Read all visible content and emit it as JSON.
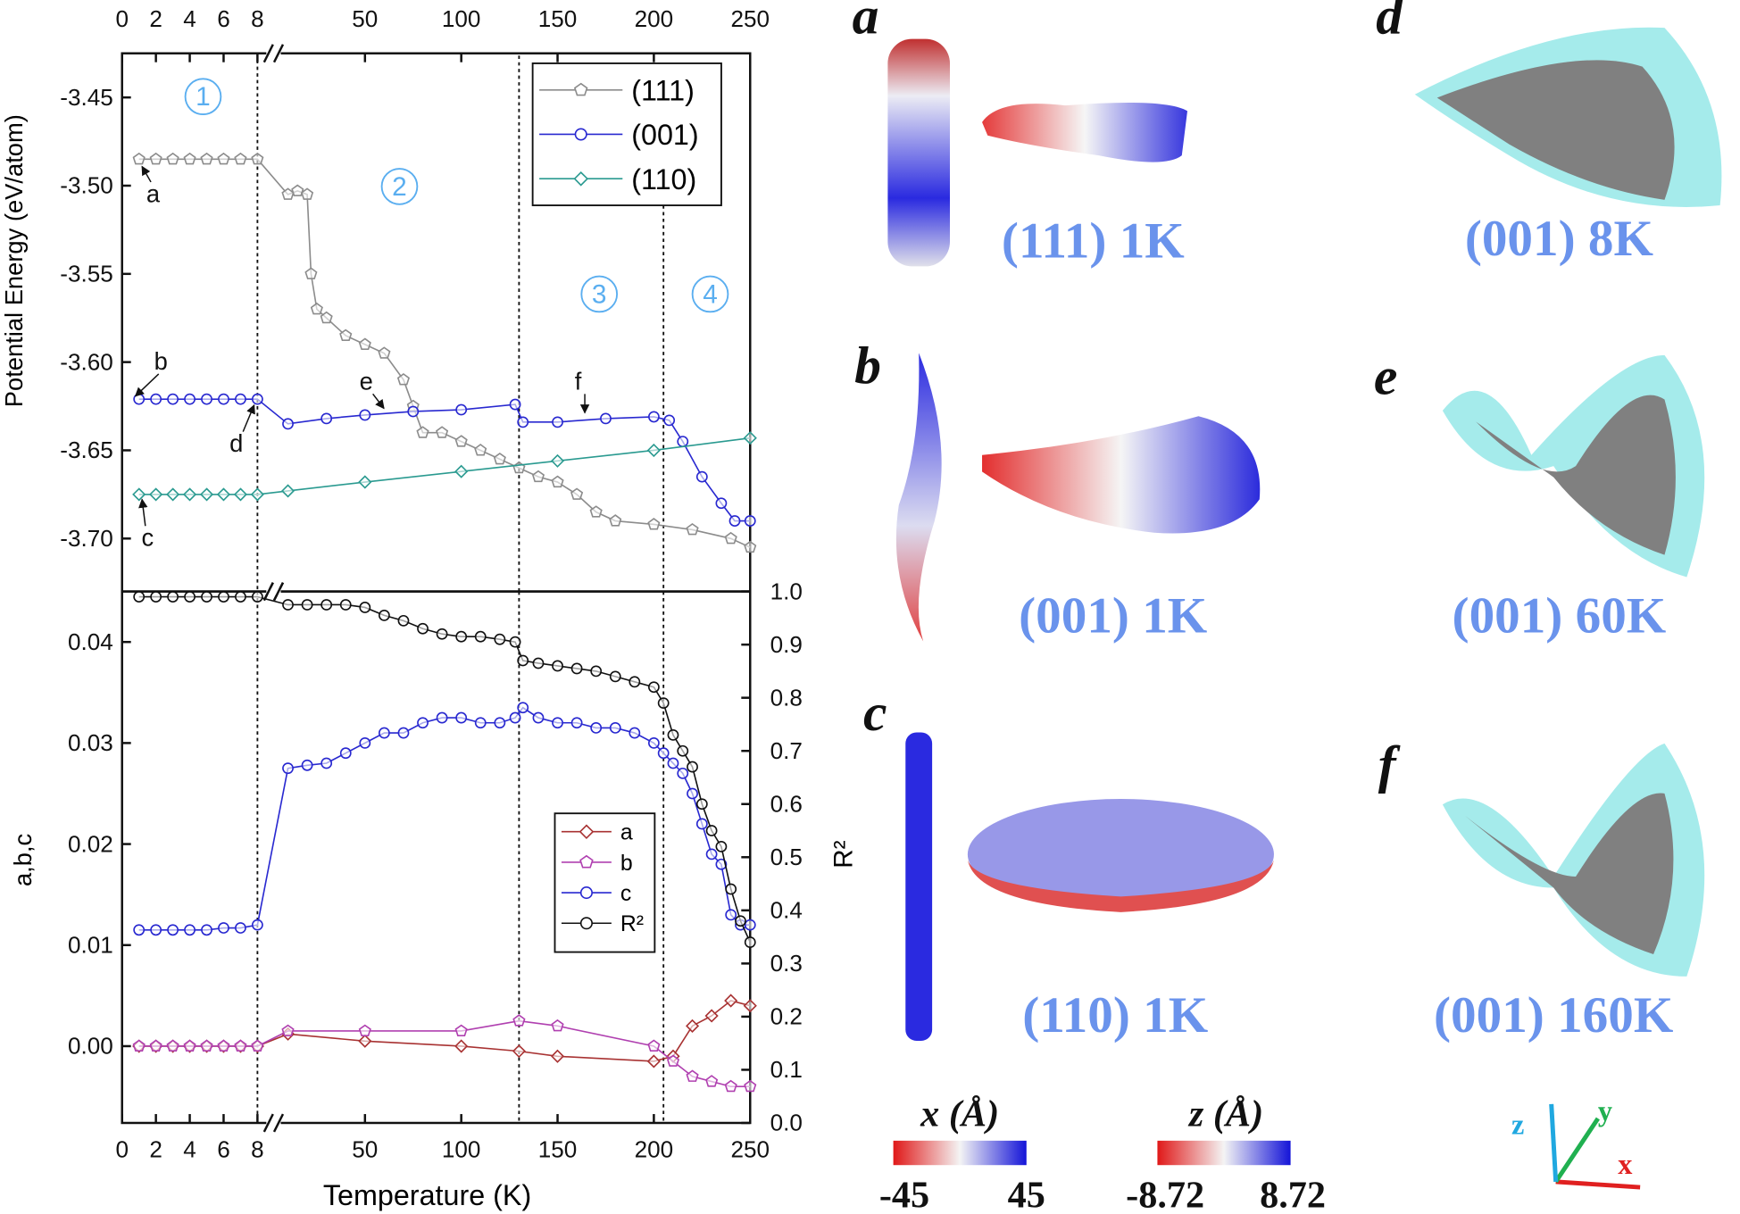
{
  "chart_data": [
    {
      "type": "line",
      "ylabel": "Potential Energy (eV/atom)",
      "x_segments": [
        {
          "xlim": [
            0,
            8
          ],
          "xticks": [
            0,
            2,
            4,
            6,
            8
          ]
        },
        {
          "xlim": [
            8,
            250
          ],
          "xticks": [
            50,
            100,
            150,
            200,
            250
          ]
        }
      ],
      "ylim": [
        -3.73,
        -3.425
      ],
      "yticks": [
        -3.45,
        {
          "value": -3.5,
          "label": "-3.50"
        },
        -3.55,
        {
          "value": -3.6,
          "label": "-3.60"
        },
        -3.65,
        {
          "value": -3.7,
          "label": "-3.70"
        }
      ],
      "vlines": [
        8,
        130,
        205
      ],
      "legend": "upper right",
      "regions": [
        "1",
        "2",
        "3",
        "4"
      ],
      "point_labels": [
        "a",
        "b",
        "c",
        "d",
        "e",
        "f"
      ],
      "series": [
        {
          "name": "(111)",
          "color": "#8c8c8c",
          "marker": "pentagon",
          "x": [
            1,
            2,
            3,
            4,
            5,
            6,
            7,
            8,
            10,
            15,
            20,
            22,
            25,
            30,
            40,
            50,
            60,
            70,
            75,
            80,
            90,
            100,
            110,
            120,
            130,
            140,
            150,
            160,
            170,
            180,
            200,
            220,
            240,
            250
          ],
          "values": [
            -3.485,
            -3.485,
            -3.485,
            -3.485,
            -3.485,
            -3.485,
            -3.485,
            -3.485,
            -3.505,
            -3.503,
            -3.505,
            -3.55,
            -3.57,
            -3.575,
            -3.585,
            -3.59,
            -3.595,
            -3.61,
            -3.625,
            -3.64,
            -3.64,
            -3.645,
            -3.65,
            -3.655,
            -3.66,
            -3.665,
            -3.668,
            -3.675,
            -3.685,
            -3.69,
            -3.692,
            -3.695,
            -3.7,
            -3.705
          ]
        },
        {
          "name": "(001)",
          "color": "#2828d0",
          "marker": "circle",
          "x": [
            1,
            2,
            3,
            4,
            5,
            6,
            7,
            8,
            10,
            30,
            50,
            75,
            100,
            128,
            132,
            150,
            175,
            200,
            208,
            215,
            225,
            235,
            242,
            250
          ],
          "values": [
            -3.621,
            -3.621,
            -3.621,
            -3.621,
            -3.621,
            -3.621,
            -3.621,
            -3.621,
            -3.635,
            -3.632,
            -3.63,
            -3.628,
            -3.627,
            -3.624,
            -3.634,
            -3.634,
            -3.632,
            -3.631,
            -3.633,
            -3.645,
            -3.665,
            -3.68,
            -3.69,
            -3.69
          ]
        },
        {
          "name": "(110)",
          "color": "#2a9a90",
          "marker": "diamond",
          "x": [
            1,
            2,
            3,
            4,
            5,
            6,
            7,
            8,
            10,
            50,
            100,
            150,
            200,
            250
          ],
          "values": [
            -3.675,
            -3.675,
            -3.675,
            -3.675,
            -3.675,
            -3.675,
            -3.675,
            -3.675,
            -3.673,
            -3.668,
            -3.662,
            -3.656,
            -3.65,
            -3.643
          ]
        }
      ]
    },
    {
      "type": "line",
      "xlabel": "Temperature (K)",
      "ylabel": "a,b,c",
      "y2label": "R²",
      "x_segments": [
        {
          "xlim": [
            0,
            8
          ],
          "xticks": [
            0,
            2,
            4,
            6,
            8
          ]
        },
        {
          "xlim": [
            8,
            250
          ],
          "xticks": [
            50,
            100,
            150,
            200,
            250
          ]
        }
      ],
      "ylim": [
        -0.0076,
        0.045
      ],
      "yticks": [
        {
          "value": 0,
          "label": "0.00"
        },
        0.01,
        0.02,
        0.03,
        0.04
      ],
      "y2lim": [
        0,
        1
      ],
      "y2ticks": [
        {
          "value": 0,
          "label": "0.0"
        },
        0.1,
        0.2,
        0.3,
        0.4,
        0.5,
        0.6,
        0.7,
        0.8,
        0.9,
        {
          "value": 1,
          "label": "1.0"
        }
      ],
      "vlines": [
        8,
        130,
        205
      ],
      "legend": "center right",
      "series": [
        {
          "name": "a",
          "color": "#a83232",
          "marker": "diamond",
          "x": [
            1,
            2,
            3,
            4,
            5,
            6,
            7,
            8,
            10,
            50,
            100,
            130,
            150,
            200,
            210,
            220,
            230,
            240,
            250
          ],
          "values": [
            0,
            0,
            0,
            0,
            0,
            0,
            0,
            0,
            0.0012,
            0.0005,
            0,
            -0.0005,
            -0.001,
            -0.0015,
            -0.001,
            0.002,
            0.003,
            0.0045,
            0.004
          ]
        },
        {
          "name": "b",
          "color": "#b040b0",
          "marker": "pentagon",
          "x": [
            1,
            2,
            3,
            4,
            5,
            6,
            7,
            8,
            10,
            50,
            100,
            130,
            150,
            200,
            210,
            220,
            230,
            240,
            250
          ],
          "values": [
            0,
            0,
            0,
            0,
            0,
            0,
            0,
            0,
            0.0015,
            0.0015,
            0.0015,
            0.0025,
            0.002,
            0,
            -0.0015,
            -0.003,
            -0.0035,
            -0.004,
            -0.004
          ]
        },
        {
          "name": "c",
          "color": "#2828d0",
          "marker": "circle",
          "x": [
            1,
            2,
            3,
            4,
            5,
            6,
            7,
            8,
            10,
            20,
            30,
            40,
            50,
            60,
            70,
            80,
            90,
            100,
            110,
            120,
            128,
            132,
            140,
            150,
            160,
            170,
            180,
            190,
            200,
            205,
            210,
            215,
            220,
            225,
            230,
            235,
            240,
            245,
            250
          ],
          "values": [
            0.0115,
            0.0115,
            0.0115,
            0.0115,
            0.0115,
            0.0117,
            0.0117,
            0.012,
            0.0275,
            0.0278,
            0.028,
            0.029,
            0.03,
            0.031,
            0.031,
            0.032,
            0.0325,
            0.0325,
            0.032,
            0.032,
            0.0325,
            0.0335,
            0.0325,
            0.032,
            0.032,
            0.0315,
            0.0315,
            0.031,
            0.03,
            0.029,
            0.028,
            0.027,
            0.025,
            0.022,
            0.019,
            0.018,
            0.013,
            0.012,
            0.012
          ]
        },
        {
          "name": "R²",
          "color": "#111111",
          "marker": "circle",
          "axis": "y2",
          "x": [
            1,
            2,
            3,
            4,
            5,
            6,
            7,
            8,
            10,
            20,
            30,
            40,
            50,
            60,
            70,
            80,
            90,
            100,
            110,
            120,
            128,
            132,
            140,
            150,
            160,
            170,
            180,
            190,
            200,
            205,
            210,
            215,
            220,
            225,
            230,
            235,
            240,
            245,
            250
          ],
          "values": [
            0.99,
            0.99,
            0.99,
            0.99,
            0.99,
            0.99,
            0.99,
            0.99,
            0.975,
            0.975,
            0.975,
            0.975,
            0.97,
            0.955,
            0.945,
            0.93,
            0.92,
            0.915,
            0.915,
            0.91,
            0.905,
            0.87,
            0.865,
            0.86,
            0.855,
            0.85,
            0.84,
            0.83,
            0.82,
            0.79,
            0.73,
            0.7,
            0.67,
            0.6,
            0.55,
            0.52,
            0.44,
            0.38,
            0.34
          ]
        }
      ]
    }
  ],
  "panels": [
    {
      "letter": "a",
      "label": "(111) 1K"
    },
    {
      "letter": "b",
      "label": "(001) 1K"
    },
    {
      "letter": "c",
      "label": "(110) 1K"
    },
    {
      "letter": "d",
      "label": "(001) 8K"
    },
    {
      "letter": "e",
      "label": "(001) 60K"
    },
    {
      "letter": "f",
      "label": "(001) 160K"
    }
  ],
  "colorbars": [
    {
      "title": "x (Å)",
      "min": -45,
      "max": 45
    },
    {
      "title": "z (Å)",
      "min": -8.72,
      "max": 8.72
    }
  ],
  "axes_triad": [
    "x",
    "y",
    "z"
  ]
}
